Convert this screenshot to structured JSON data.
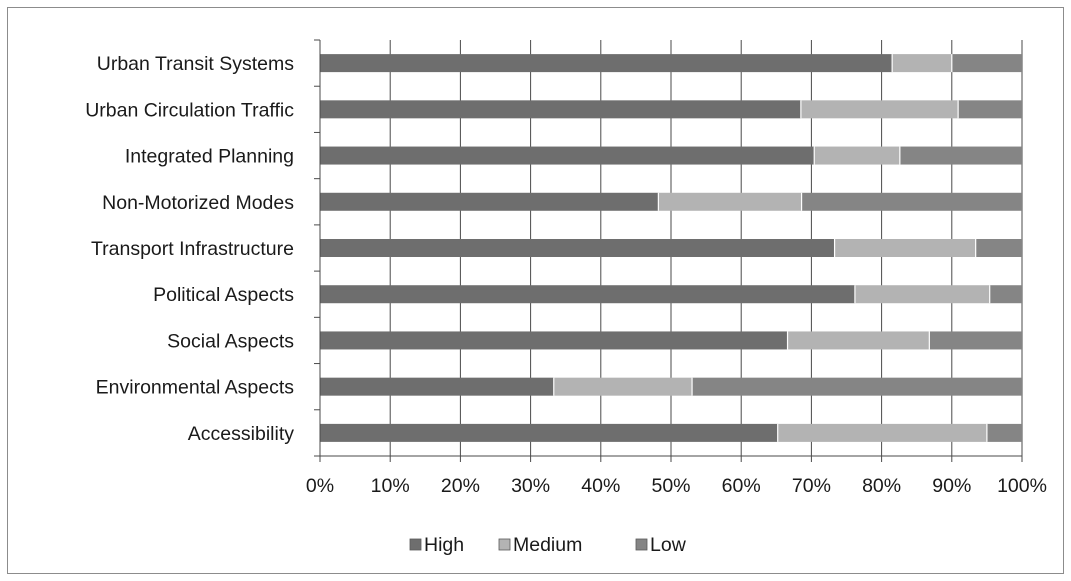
{
  "chart_data": {
    "type": "bar",
    "orientation": "horizontal",
    "stacked": "percent",
    "categories": [
      "Urban Transit Systems",
      "Urban Circulation Traffic",
      "Integrated Planning",
      "Non-Motorized Modes",
      "Transport Infrastructure",
      "Political Aspects",
      "Social Aspects",
      "Environmental Aspects",
      "Accessibility"
    ],
    "series": [
      {
        "name": "High",
        "color": "#6e6e6e",
        "values": [
          81.5,
          68.5,
          70.4,
          48.2,
          73.3,
          76.2,
          66.6,
          33.3,
          65.2
        ]
      },
      {
        "name": "Medium",
        "color": "#b3b3b3",
        "values": [
          8.5,
          22.4,
          12.2,
          20.4,
          20.1,
          19.2,
          20.2,
          19.7,
          29.8
        ]
      },
      {
        "name": "Low",
        "color": "#858585",
        "values": [
          10.0,
          9.1,
          17.4,
          31.4,
          6.6,
          4.6,
          13.2,
          47.0,
          5.0
        ]
      }
    ],
    "xticks": [
      "0%",
      "10%",
      "20%",
      "30%",
      "40%",
      "50%",
      "60%",
      "70%",
      "80%",
      "90%",
      "100%"
    ],
    "xlim": [
      0,
      100
    ],
    "grid": "vertical",
    "legend_position": "bottom"
  }
}
